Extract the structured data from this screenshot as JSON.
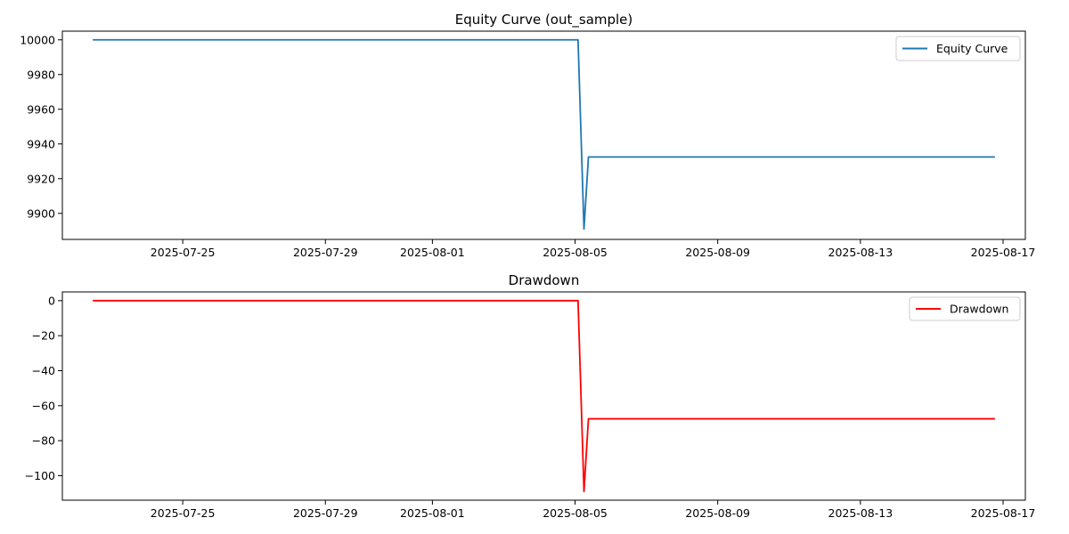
{
  "chart_data": [
    {
      "type": "line",
      "title": "Equity Curve (out_sample)",
      "xlabel": "",
      "ylabel": "",
      "x_axis_type": "date",
      "xlim": [
        "2025-07-21T15:00",
        "2025-08-17T15:00"
      ],
      "ylim": [
        9885,
        10005
      ],
      "x_ticks": [
        "2025-07-25",
        "2025-07-29",
        "2025-08-01",
        "2025-08-05",
        "2025-08-09",
        "2025-08-13",
        "2025-08-17"
      ],
      "y_ticks": [
        10000,
        9980,
        9960,
        9940,
        9920,
        9900
      ],
      "legend_position": "top-right",
      "grid": false,
      "series": [
        {
          "name": "Equity Curve",
          "color": "#1f77b4",
          "x": [
            "2025-07-22T12:00",
            "2025-08-05T02:00",
            "2025-08-05T06:00",
            "2025-08-05T09:00",
            "2025-08-16T18:00"
          ],
          "y": [
            10000,
            10000,
            9891,
            9932.5,
            9932.5
          ]
        }
      ]
    },
    {
      "type": "line",
      "title": "Drawdown",
      "xlabel": "",
      "ylabel": "",
      "x_axis_type": "date",
      "xlim": [
        "2025-07-21T15:00",
        "2025-08-17T15:00"
      ],
      "ylim": [
        -114,
        5
      ],
      "x_ticks": [
        "2025-07-25",
        "2025-07-29",
        "2025-08-01",
        "2025-08-05",
        "2025-08-09",
        "2025-08-13",
        "2025-08-17"
      ],
      "y_ticks": [
        0,
        -20,
        -40,
        -60,
        -80,
        -100
      ],
      "y_tick_labels": [
        "0",
        "−20",
        "−40",
        "−60",
        "−80",
        "−100"
      ],
      "legend_position": "top-right",
      "grid": false,
      "series": [
        {
          "name": "Drawdown",
          "color": "#ff0000",
          "x": [
            "2025-07-22T12:00",
            "2025-08-05T02:00",
            "2025-08-05T06:00",
            "2025-08-05T09:00",
            "2025-08-16T18:00"
          ],
          "y": [
            0,
            0,
            -109,
            -67.5,
            -67.5
          ]
        }
      ]
    }
  ]
}
